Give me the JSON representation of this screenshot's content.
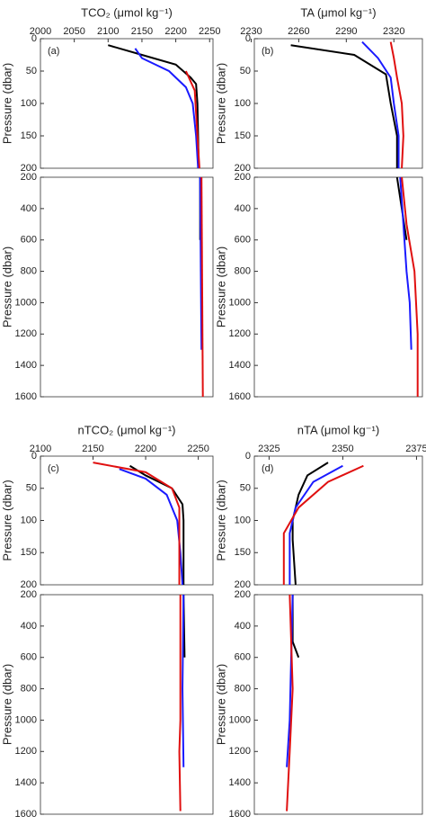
{
  "chart_data": [
    {
      "type": "line",
      "title": "TCO₂ (μmol kg⁻¹)",
      "annotation": "(a)",
      "ylabel": "Pressure (dbar)",
      "xlim": [
        2000,
        2255
      ],
      "xticks": [
        2000,
        2050,
        2100,
        2150,
        2200,
        2250
      ],
      "ylim": [
        0,
        200
      ],
      "yticks": [
        0,
        50,
        100,
        150,
        200
      ],
      "series": [
        {
          "color": "#000000",
          "x": [
            2100,
            2150,
            2200,
            2222,
            2230,
            2232,
            2233,
            2234
          ],
          "y": [
            10,
            25,
            40,
            60,
            70,
            100,
            150,
            200
          ]
        },
        {
          "color": "#1a1aff",
          "x": [
            2140,
            2150,
            2190,
            2215,
            2225,
            2230,
            2233
          ],
          "y": [
            15,
            30,
            50,
            75,
            100,
            150,
            200
          ]
        },
        {
          "color": "#e01010",
          "x": [
            2215,
            2228,
            2232,
            2235
          ],
          "y": [
            50,
            80,
            150,
            200
          ]
        }
      ]
    },
    {
      "type": "line",
      "ylabel": "Pressure (dbar)",
      "xlim": [
        2000,
        2255
      ],
      "ylim": [
        200,
        1600
      ],
      "yticks": [
        200,
        400,
        600,
        800,
        1000,
        1200,
        1400,
        1600
      ],
      "series": [
        {
          "color": "#000000",
          "x": [
            2236,
            2236
          ],
          "y": [
            200,
            600
          ]
        },
        {
          "color": "#1a1aff",
          "x": [
            2236,
            2237,
            2238
          ],
          "y": [
            200,
            800,
            1300
          ]
        },
        {
          "color": "#e01010",
          "x": [
            2238,
            2239,
            2240
          ],
          "y": [
            200,
            900,
            1600
          ]
        }
      ]
    },
    {
      "type": "line",
      "title": "TA (μmol kg⁻¹)",
      "annotation": "(b)",
      "ylabel": "Pressure (dbar)",
      "xlim": [
        2232,
        2338
      ],
      "xticks": [
        2230,
        2260,
        2290,
        2320
      ],
      "ylim": [
        0,
        200
      ],
      "yticks": [
        0,
        50,
        100,
        150,
        200
      ],
      "series": [
        {
          "color": "#000000",
          "x": [
            2255,
            2295,
            2315,
            2318,
            2322,
            2322
          ],
          "y": [
            10,
            25,
            55,
            100,
            150,
            200
          ]
        },
        {
          "color": "#1a1aff",
          "x": [
            2300,
            2310,
            2318,
            2320,
            2323,
            2323
          ],
          "y": [
            5,
            30,
            60,
            100,
            150,
            200
          ]
        },
        {
          "color": "#e01010",
          "x": [
            2318,
            2320,
            2322,
            2325,
            2326,
            2325
          ],
          "y": [
            5,
            30,
            60,
            100,
            150,
            200
          ]
        }
      ]
    },
    {
      "type": "line",
      "ylabel": "Pressure (dbar)",
      "xlim": [
        2232,
        2338
      ],
      "ylim": [
        200,
        1600
      ],
      "yticks": [
        200,
        400,
        600,
        800,
        1000,
        1200,
        1400,
        1600
      ],
      "series": [
        {
          "color": "#000000",
          "x": [
            2322,
            2325,
            2328
          ],
          "y": [
            200,
            400,
            600
          ]
        },
        {
          "color": "#1a1aff",
          "x": [
            2324,
            2326,
            2328,
            2330,
            2331
          ],
          "y": [
            200,
            500,
            800,
            1000,
            1300
          ]
        },
        {
          "color": "#e01010",
          "x": [
            2325,
            2328,
            2333,
            2335,
            2335
          ],
          "y": [
            200,
            500,
            800,
            1200,
            1600
          ]
        }
      ]
    },
    {
      "type": "line",
      "title": "nTCO₂ (μmol kg⁻¹)",
      "annotation": "(c)",
      "ylabel": "Pressure (dbar)",
      "xlim": [
        2100,
        2264
      ],
      "xticks": [
        2100,
        2150,
        2200,
        2250
      ],
      "ylim": [
        0,
        200
      ],
      "yticks": [
        0,
        50,
        100,
        150,
        200
      ],
      "series": [
        {
          "color": "#000000",
          "x": [
            2185,
            2200,
            2225,
            2235,
            2236,
            2236
          ],
          "y": [
            15,
            30,
            50,
            75,
            100,
            200
          ]
        },
        {
          "color": "#1a1aff",
          "x": [
            2175,
            2200,
            2220,
            2230,
            2233,
            2235
          ],
          "y": [
            20,
            35,
            60,
            100,
            150,
            200
          ]
        },
        {
          "color": "#e01010",
          "x": [
            2150,
            2200,
            2225,
            2232,
            2232,
            2232
          ],
          "y": [
            10,
            25,
            50,
            80,
            150,
            200
          ]
        }
      ]
    },
    {
      "type": "line",
      "ylabel": "Pressure (dbar)",
      "xlim": [
        2100,
        2264
      ],
      "ylim": [
        200,
        1600
      ],
      "yticks": [
        200,
        400,
        600,
        800,
        1000,
        1200,
        1400,
        1600
      ],
      "series": [
        {
          "color": "#000000",
          "x": [
            2236,
            2237
          ],
          "y": [
            200,
            600
          ]
        },
        {
          "color": "#1a1aff",
          "x": [
            2236,
            2235,
            2236
          ],
          "y": [
            200,
            800,
            1300
          ]
        },
        {
          "color": "#e01010",
          "x": [
            2233,
            2233,
            2232,
            2233
          ],
          "y": [
            200,
            1000,
            1200,
            1580
          ]
        }
      ]
    },
    {
      "type": "line",
      "title": "nTA (μmol kg⁻¹)",
      "annotation": "(d)",
      "ylabel": "Pressure (dbar)",
      "xlim": [
        2320,
        2377
      ],
      "xticks": [
        2325,
        2350,
        2375
      ],
      "ylim": [
        0,
        200
      ],
      "yticks": [
        0,
        50,
        100,
        150,
        200
      ],
      "series": [
        {
          "color": "#000000",
          "x": [
            2345,
            2338,
            2335,
            2333,
            2333,
            2334
          ],
          "y": [
            10,
            30,
            60,
            100,
            130,
            200
          ]
        },
        {
          "color": "#1a1aff",
          "x": [
            2350,
            2340,
            2334,
            2332,
            2332
          ],
          "y": [
            15,
            40,
            80,
            120,
            200
          ]
        },
        {
          "color": "#e01010",
          "x": [
            2357,
            2345,
            2335,
            2330,
            2330
          ],
          "y": [
            15,
            40,
            80,
            120,
            200
          ]
        }
      ]
    },
    {
      "type": "line",
      "ylabel": "Pressure (dbar)",
      "xlim": [
        2320,
        2377
      ],
      "ylim": [
        200,
        1600
      ],
      "yticks": [
        200,
        400,
        600,
        800,
        1000,
        1200,
        1400,
        1600
      ],
      "series": [
        {
          "color": "#000000",
          "x": [
            2333,
            2333,
            2335
          ],
          "y": [
            200,
            500,
            600
          ]
        },
        {
          "color": "#1a1aff",
          "x": [
            2333,
            2332,
            2331
          ],
          "y": [
            200,
            1000,
            1300
          ]
        },
        {
          "color": "#e01010",
          "x": [
            2332,
            2333,
            2332,
            2331
          ],
          "y": [
            200,
            800,
            1200,
            1580
          ]
        }
      ]
    }
  ]
}
